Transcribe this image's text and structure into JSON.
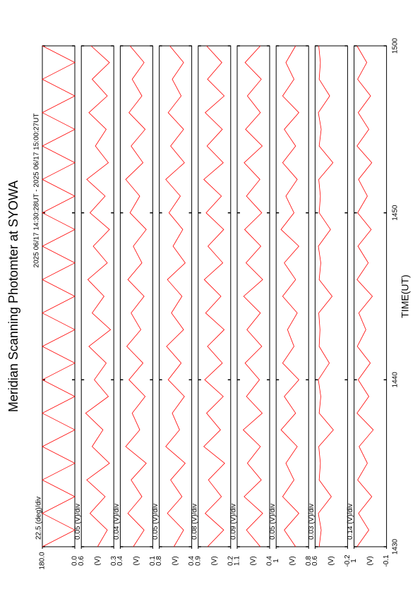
{
  "chart_data": {
    "type": "line",
    "title": "Meridian Scanning Photomter at SYOWA",
    "subtitle": "2025 06/17 14:30:28UT - 2025 06/17 15:00:27UT",
    "x_label": "TIME(UT)",
    "x": [
      0,
      1,
      2,
      3,
      4,
      5,
      6,
      7,
      8,
      9,
      10,
      11,
      12,
      13,
      14,
      15,
      16,
      17,
      18,
      19,
      20,
      21,
      22,
      23,
      24,
      25,
      26,
      27,
      28,
      29,
      30
    ],
    "xlim": [
      0,
      30
    ],
    "xticks": [
      {
        "value": 0,
        "label": "1430"
      },
      {
        "value": 10,
        "label": "1440"
      },
      {
        "value": 20,
        "label": "1450"
      },
      {
        "value": 30,
        "label": "1500"
      }
    ],
    "color": "#ff0000",
    "panels": [
      {
        "scale_label": "22.5 (deg)/div",
        "ylim": [
          0,
          180
        ],
        "yticks": [
          {
            "value": 180,
            "label": "180.0"
          },
          {
            "value": 0,
            "label": "0.0"
          }
        ],
        "values": [
          180,
          0,
          180,
          0,
          180,
          0,
          180,
          0,
          180,
          0,
          180,
          0,
          180,
          0,
          180,
          0,
          180,
          0,
          180,
          0,
          180,
          0,
          180,
          0,
          180,
          0,
          180,
          0,
          180,
          0,
          180
        ]
      },
      {
        "scale_label": "0.05 (V)/div",
        "unit_label": "(V)",
        "ylim": [
          0.3,
          0.6
        ],
        "yticks": [
          0.6,
          0.3
        ],
        "values": [
          0.45,
          0.36,
          0.52,
          0.38,
          0.55,
          0.34,
          0.5,
          0.4,
          0.56,
          0.35,
          0.48,
          0.37,
          0.53,
          0.33,
          0.5,
          0.39,
          0.54,
          0.36,
          0.49,
          0.34,
          0.52,
          0.38,
          0.55,
          0.35,
          0.47,
          0.37,
          0.53,
          0.36,
          0.5,
          0.34,
          0.51
        ]
      },
      {
        "scale_label": "0.04 (V)/div",
        "unit_label": "(V)",
        "ylim": [
          0.1,
          0.4
        ],
        "yticks": [
          0.4,
          0.1
        ],
        "values": [
          0.28,
          0.18,
          0.33,
          0.2,
          0.3,
          0.16,
          0.35,
          0.22,
          0.29,
          0.17,
          0.32,
          0.19,
          0.34,
          0.21,
          0.3,
          0.18,
          0.33,
          0.2,
          0.28,
          0.16,
          0.31,
          0.22,
          0.35,
          0.19,
          0.3,
          0.17,
          0.32,
          0.2,
          0.29,
          0.18,
          0.31
        ]
      },
      {
        "scale_label": "0.05 (V)/div",
        "unit_label": "(V)",
        "ylim": [
          0.4,
          0.8
        ],
        "yticks": [
          0.8,
          0.4
        ],
        "values": [
          0.62,
          0.5,
          0.7,
          0.52,
          0.66,
          0.48,
          0.72,
          0.55,
          0.64,
          0.49,
          0.69,
          0.53,
          0.71,
          0.5,
          0.65,
          0.52,
          0.7,
          0.48,
          0.63,
          0.51,
          0.68,
          0.54,
          0.72,
          0.49,
          0.66,
          0.5,
          0.69,
          0.53,
          0.64,
          0.5,
          0.67
        ]
      },
      {
        "scale_label": "0.08 (V)/div",
        "unit_label": "(V)",
        "ylim": [
          0.2,
          0.9
        ],
        "yticks": [
          0.9,
          0.2
        ],
        "values": [
          0.7,
          0.35,
          0.75,
          0.4,
          0.68,
          0.33,
          0.78,
          0.42,
          0.72,
          0.36,
          0.76,
          0.38,
          0.7,
          0.34,
          0.74,
          0.41,
          0.77,
          0.37,
          0.69,
          0.35,
          0.73,
          0.4,
          0.78,
          0.36,
          0.71,
          0.38,
          0.75,
          0.34,
          0.7,
          0.39,
          0.72
        ]
      },
      {
        "scale_label": "0.09 (V)/div",
        "unit_label": "(V)",
        "ylim": [
          0.4,
          1.1
        ],
        "yticks": [
          1.1,
          0.4
        ],
        "values": [
          0.6,
          0.9,
          0.55,
          0.95,
          0.58,
          0.88,
          0.6,
          0.97,
          0.56,
          0.9,
          0.62,
          0.93,
          0.57,
          0.89,
          0.6,
          0.96,
          0.55,
          0.91,
          0.59,
          0.94,
          0.57,
          0.9,
          0.61,
          0.95,
          0.56,
          0.92,
          0.6,
          0.88,
          0.58,
          0.93,
          0.6
        ]
      },
      {
        "scale_label": "0.05 (V)/div",
        "unit_label": "(V)",
        "ylim": [
          0.8,
          1.0
        ],
        "yticks": [
          1.0,
          0.8
        ],
        "values": [
          0.88,
          0.95,
          0.86,
          0.96,
          0.89,
          0.94,
          0.87,
          0.97,
          0.88,
          0.95,
          0.86,
          0.96,
          0.89,
          0.93,
          0.87,
          0.96,
          0.88,
          0.95,
          0.86,
          0.97,
          0.89,
          0.94,
          0.87,
          0.96,
          0.88,
          0.95,
          0.86,
          0.96,
          0.89,
          0.94,
          0.88
        ]
      },
      {
        "scale_label": "0.03 (V)/div",
        "unit_label": "(V)",
        "ylim": [
          -0.2,
          0.6
        ],
        "yticks": [
          0.6,
          -0.2
        ],
        "values": [
          0.5,
          0.45,
          0.52,
          0.2,
          0.5,
          0.47,
          0.51,
          0.15,
          0.5,
          0.46,
          0.52,
          0.25,
          0.5,
          0.48,
          0.51,
          0.18,
          0.5,
          0.46,
          0.52,
          0.22,
          0.5,
          0.47,
          0.51,
          0.16,
          0.5,
          0.45,
          0.52,
          0.24,
          0.5,
          0.47,
          0.51
        ]
      },
      {
        "scale_label": "0.14 (V)/div",
        "unit_label": "(V)",
        "ylim": [
          -0.1,
          1.0
        ],
        "yticks": [
          1.0,
          -0.1
        ],
        "values": [
          0.9,
          0.5,
          0.85,
          0.4,
          0.88,
          0.55,
          0.83,
          0.35,
          0.9,
          0.5,
          0.86,
          0.45,
          0.89,
          0.6,
          0.84,
          0.38,
          0.9,
          0.52,
          0.87,
          0.42,
          0.88,
          0.55,
          0.85,
          0.4,
          0.9,
          0.5,
          0.86,
          0.44,
          0.88,
          0.57,
          0.9
        ]
      }
    ]
  }
}
